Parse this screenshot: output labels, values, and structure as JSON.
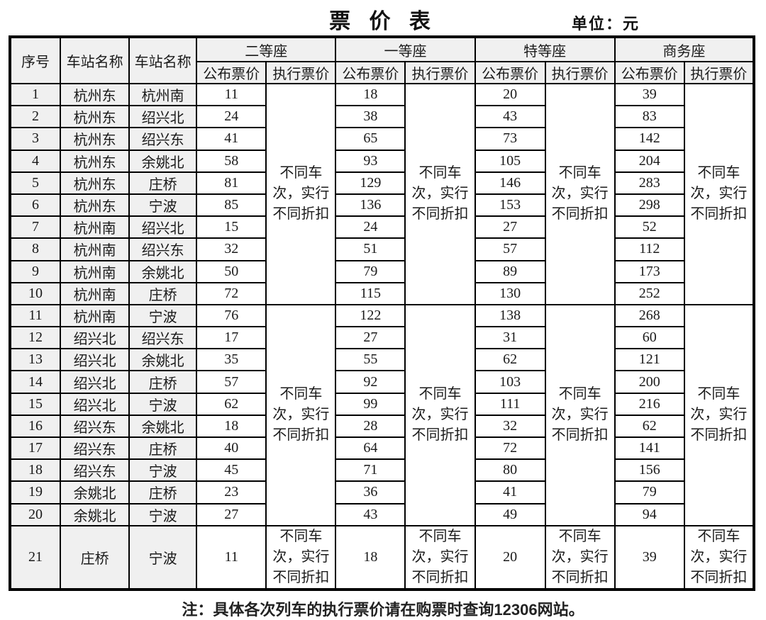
{
  "title": "票 价 表",
  "unit": "单位：元",
  "note": "注：具体各次列车的执行票价请在购票时查询12306网站。",
  "discount_note": "不同车\n次，实行\n不同折扣",
  "header": {
    "seq": "序号",
    "station_from": "车站名称",
    "station_to": "车站名称",
    "classes": [
      "二等座",
      "一等座",
      "特等座",
      "商务座"
    ],
    "published": "公布票价",
    "executed": "执行票价"
  },
  "groups": [
    {
      "rows": [
        {
          "seq": 1,
          "from": "杭州东",
          "to": "杭州南",
          "fares": [
            11,
            18,
            20,
            39
          ]
        },
        {
          "seq": 2,
          "from": "杭州东",
          "to": "绍兴北",
          "fares": [
            24,
            38,
            43,
            83
          ]
        },
        {
          "seq": 3,
          "from": "杭州东",
          "to": "绍兴东",
          "fares": [
            41,
            65,
            73,
            142
          ]
        },
        {
          "seq": 4,
          "from": "杭州东",
          "to": "余姚北",
          "fares": [
            58,
            93,
            105,
            204
          ]
        },
        {
          "seq": 5,
          "from": "杭州东",
          "to": "庄桥",
          "fares": [
            81,
            129,
            146,
            283
          ]
        },
        {
          "seq": 6,
          "from": "杭州东",
          "to": "宁波",
          "fares": [
            85,
            136,
            153,
            298
          ]
        },
        {
          "seq": 7,
          "from": "杭州南",
          "to": "绍兴北",
          "fares": [
            15,
            24,
            27,
            52
          ]
        },
        {
          "seq": 8,
          "from": "杭州南",
          "to": "绍兴东",
          "fares": [
            32,
            51,
            57,
            112
          ]
        },
        {
          "seq": 9,
          "from": "杭州南",
          "to": "余姚北",
          "fares": [
            50,
            79,
            89,
            173
          ]
        },
        {
          "seq": 10,
          "from": "杭州南",
          "to": "庄桥",
          "fares": [
            72,
            115,
            130,
            252
          ]
        }
      ]
    },
    {
      "rows": [
        {
          "seq": 11,
          "from": "杭州南",
          "to": "宁波",
          "fares": [
            76,
            122,
            138,
            268
          ]
        },
        {
          "seq": 12,
          "from": "绍兴北",
          "to": "绍兴东",
          "fares": [
            17,
            27,
            31,
            60
          ]
        },
        {
          "seq": 13,
          "from": "绍兴北",
          "to": "余姚北",
          "fares": [
            35,
            55,
            62,
            121
          ]
        },
        {
          "seq": 14,
          "from": "绍兴北",
          "to": "庄桥",
          "fares": [
            57,
            92,
            103,
            200
          ]
        },
        {
          "seq": 15,
          "from": "绍兴北",
          "to": "宁波",
          "fares": [
            62,
            99,
            111,
            216
          ]
        },
        {
          "seq": 16,
          "from": "绍兴东",
          "to": "余姚北",
          "fares": [
            18,
            28,
            32,
            62
          ]
        },
        {
          "seq": 17,
          "from": "绍兴东",
          "to": "庄桥",
          "fares": [
            40,
            64,
            72,
            141
          ]
        },
        {
          "seq": 18,
          "from": "绍兴东",
          "to": "宁波",
          "fares": [
            45,
            71,
            80,
            156
          ]
        },
        {
          "seq": 19,
          "from": "余姚北",
          "to": "庄桥",
          "fares": [
            23,
            36,
            41,
            79
          ]
        },
        {
          "seq": 20,
          "from": "余姚北",
          "to": "宁波",
          "fares": [
            27,
            43,
            49,
            94
          ]
        }
      ]
    },
    {
      "discount_per_row": true,
      "rows": [
        {
          "seq": 21,
          "from": "庄桥",
          "to": "宁波",
          "fares": [
            11,
            18,
            20,
            39
          ]
        }
      ]
    }
  ]
}
